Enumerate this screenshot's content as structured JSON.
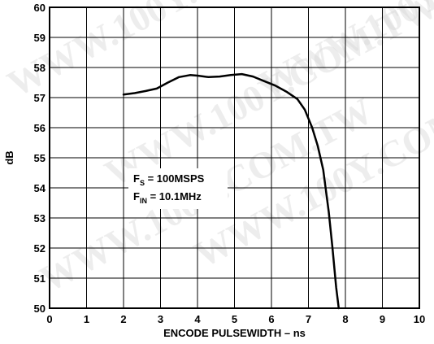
{
  "chart_data": {
    "type": "line",
    "title": "",
    "xlabel": "ENCODE PULSEWIDTH – ns",
    "ylabel": "dB",
    "xlim": [
      0,
      10
    ],
    "ylim": [
      50,
      60
    ],
    "x_ticks": [
      "0",
      "1",
      "2",
      "3",
      "4",
      "5",
      "6",
      "7",
      "8",
      "9",
      "10"
    ],
    "y_ticks": [
      "50",
      "51",
      "52",
      "53",
      "54",
      "55",
      "56",
      "57",
      "58",
      "59",
      "60"
    ],
    "grid": true,
    "legend": "none",
    "annotation": {
      "line1": {
        "main": "F",
        "sub": "S",
        "rest": " = 100MSPS"
      },
      "line2": {
        "main": "F",
        "sub": "IN",
        "rest": " = 10.1MHz"
      }
    },
    "series": [
      {
        "x": [
          2.0,
          2.3,
          2.6,
          2.9,
          3.2,
          3.5,
          3.8,
          4.0,
          4.3,
          4.6,
          4.9,
          5.2,
          5.5,
          5.8,
          6.1,
          6.4,
          6.7,
          6.9,
          7.1,
          7.25,
          7.4,
          7.55,
          7.65,
          7.75,
          7.82
        ],
        "y": [
          57.1,
          57.15,
          57.22,
          57.3,
          57.5,
          57.68,
          57.75,
          57.73,
          57.68,
          57.7,
          57.75,
          57.78,
          57.7,
          57.55,
          57.4,
          57.2,
          56.95,
          56.6,
          56.0,
          55.4,
          54.6,
          53.2,
          52.0,
          50.7,
          50.0
        ]
      }
    ],
    "watermark": "WWW.100Y.COM.TW"
  }
}
